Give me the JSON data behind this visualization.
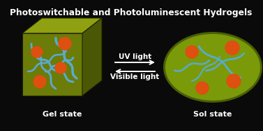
{
  "bg_color": "#0a0a0a",
  "title": "Photoswitchable and Photoluminescent Hydrogels",
  "title_color": "#ffffff",
  "title_fontsize": 8.8,
  "cube_face_color": "#6b7c08",
  "cube_top_color": "#8fa010",
  "cube_right_color": "#4a5806",
  "ellipse_outer_color": "#4a6005",
  "ellipse_inner_color": "#7a9a0a",
  "blue_color": "#5aaad0",
  "orange_color": "#dd5010",
  "arrow_color": "#ffffff",
  "gel_label": "Gel state",
  "sol_label": "Sol state",
  "uv_label": "UV light",
  "vis_label": "Visible light",
  "label_color": "#ffffff",
  "label_fontsize": 8.0,
  "arrow_fontsize": 7.5
}
